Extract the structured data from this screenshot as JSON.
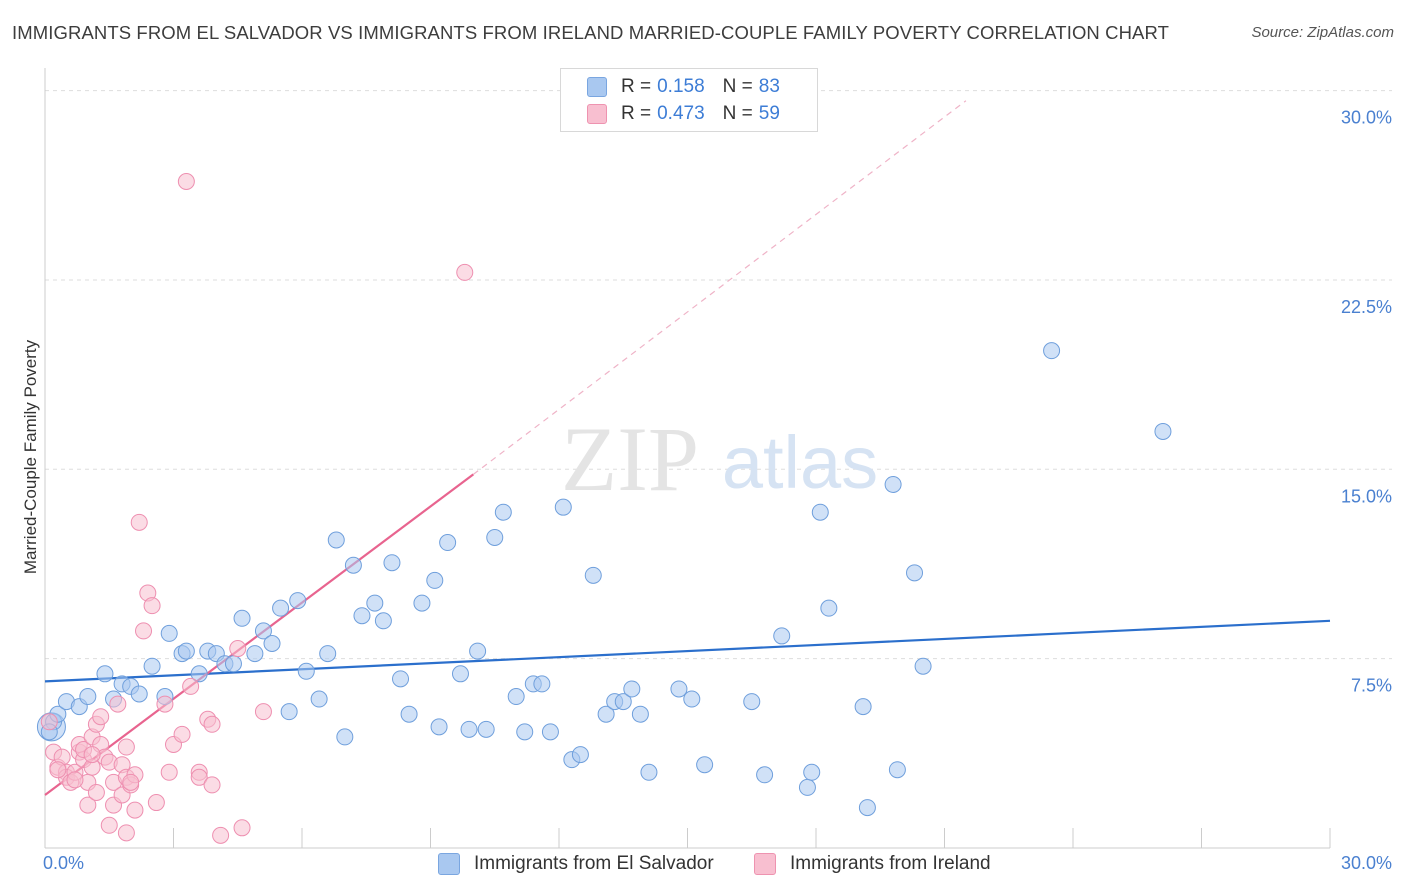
{
  "title": "IMMIGRANTS FROM EL SALVADOR VS IMMIGRANTS FROM IRELAND MARRIED-COUPLE FAMILY POVERTY CORRELATION CHART",
  "source": "Source: ZipAtlas.com",
  "watermark": {
    "zip": "ZIP",
    "atlas": "atlas"
  },
  "legend": {
    "r_label": "R =",
    "n_label": "N =",
    "rows": [
      {
        "name": "Immigrants from El Salvador",
        "r": "0.158",
        "n": "83",
        "color": "#a9c8f0",
        "stroke": "#7aa6e0"
      },
      {
        "name": "Immigrants from Ireland",
        "r": "0.473",
        "n": "59",
        "color": "#f8bfd0",
        "stroke": "#ee93b0"
      }
    ]
  },
  "chart_data": {
    "type": "scatter",
    "title": "IMMIGRANTS FROM EL SALVADOR VS IMMIGRANTS FROM IRELAND MARRIED-COUPLE FAMILY POVERTY CORRELATION CHART",
    "xlabel": "",
    "ylabel": "Married-Couple Family Poverty",
    "xlim": [
      0,
      30
    ],
    "ylim": [
      0,
      30.5
    ],
    "x_tick_labels": [
      {
        "value": 0,
        "label": "0.0%"
      },
      {
        "value": 30,
        "label": "30.0%"
      }
    ],
    "y_tick_labels": [
      {
        "value": 7.5,
        "label": "7.5%"
      },
      {
        "value": 15.0,
        "label": "15.0%"
      },
      {
        "value": 22.5,
        "label": "22.5%"
      },
      {
        "value": 30.0,
        "label": "30.0%"
      }
    ],
    "x_minor_ticks": [
      0,
      3,
      6,
      9,
      12,
      15,
      18,
      21,
      24,
      27,
      30
    ],
    "grid": true,
    "series": [
      {
        "name": "Immigrants from El Salvador",
        "color": "#a9c8f0",
        "stroke": "#6f9fdc",
        "trend": {
          "x0": 0,
          "y0": 6.6,
          "x1": 30,
          "y1": 9.0,
          "color": "#2b6fcc"
        },
        "points": [
          [
            0.2,
            5.0
          ],
          [
            0.3,
            5.3
          ],
          [
            0.5,
            5.8
          ],
          [
            0.8,
            5.6
          ],
          [
            1.0,
            6.0
          ],
          [
            1.4,
            6.9
          ],
          [
            1.6,
            5.9
          ],
          [
            1.8,
            6.5
          ],
          [
            2.0,
            6.4
          ],
          [
            2.2,
            6.1
          ],
          [
            2.5,
            7.2
          ],
          [
            2.8,
            6.0
          ],
          [
            2.9,
            8.5
          ],
          [
            3.2,
            7.7
          ],
          [
            3.3,
            7.8
          ],
          [
            3.6,
            6.9
          ],
          [
            3.8,
            7.8
          ],
          [
            4.0,
            7.7
          ],
          [
            4.2,
            7.3
          ],
          [
            4.4,
            7.3
          ],
          [
            4.6,
            9.1
          ],
          [
            4.9,
            7.7
          ],
          [
            5.1,
            8.6
          ],
          [
            5.3,
            8.1
          ],
          [
            5.5,
            9.5
          ],
          [
            5.7,
            5.4
          ],
          [
            5.9,
            9.8
          ],
          [
            6.1,
            7.0
          ],
          [
            6.4,
            5.9
          ],
          [
            6.6,
            7.7
          ],
          [
            6.8,
            12.2
          ],
          [
            7.0,
            4.4
          ],
          [
            7.2,
            11.2
          ],
          [
            7.4,
            9.2
          ],
          [
            7.7,
            9.7
          ],
          [
            7.9,
            9.0
          ],
          [
            8.1,
            11.3
          ],
          [
            8.3,
            6.7
          ],
          [
            8.5,
            5.3
          ],
          [
            8.8,
            9.7
          ],
          [
            9.1,
            10.6
          ],
          [
            9.2,
            4.8
          ],
          [
            9.4,
            12.1
          ],
          [
            9.7,
            6.9
          ],
          [
            9.9,
            4.7
          ],
          [
            10.1,
            7.8
          ],
          [
            10.3,
            4.7
          ],
          [
            10.5,
            12.3
          ],
          [
            10.7,
            13.3
          ],
          [
            11.0,
            6.0
          ],
          [
            11.2,
            4.6
          ],
          [
            11.4,
            6.5
          ],
          [
            11.6,
            6.5
          ],
          [
            11.8,
            4.6
          ],
          [
            12.1,
            13.5
          ],
          [
            12.3,
            3.5
          ],
          [
            12.5,
            3.7
          ],
          [
            12.8,
            10.8
          ],
          [
            13.1,
            5.3
          ],
          [
            13.3,
            5.8
          ],
          [
            13.5,
            5.8
          ],
          [
            13.7,
            6.3
          ],
          [
            13.9,
            5.3
          ],
          [
            14.1,
            3.0
          ],
          [
            14.8,
            6.3
          ],
          [
            15.1,
            5.9
          ],
          [
            15.4,
            3.3
          ],
          [
            16.5,
            5.8
          ],
          [
            16.8,
            2.9
          ],
          [
            17.2,
            8.4
          ],
          [
            17.8,
            2.4
          ],
          [
            17.9,
            3.0
          ],
          [
            18.1,
            13.3
          ],
          [
            18.3,
            9.5
          ],
          [
            19.1,
            5.6
          ],
          [
            19.2,
            1.6
          ],
          [
            19.8,
            14.4
          ],
          [
            19.9,
            3.1
          ],
          [
            20.3,
            10.9
          ],
          [
            20.5,
            7.2
          ],
          [
            23.5,
            19.7
          ],
          [
            26.1,
            16.5
          ],
          [
            0.1,
            4.6
          ]
        ]
      },
      {
        "name": "Immigrants from Ireland",
        "color": "#f8bfd0",
        "stroke": "#ee8fb0",
        "trend": {
          "x0": 0,
          "y0": 2.1,
          "x1": 10.0,
          "y1": 14.8,
          "color": "#e8648f"
        },
        "trend_ext": {
          "x1": 21.5,
          "y1": 29.6
        },
        "points": [
          [
            0.1,
            5.0
          ],
          [
            0.2,
            3.8
          ],
          [
            0.3,
            3.2
          ],
          [
            0.4,
            3.6
          ],
          [
            0.5,
            3.0
          ],
          [
            0.5,
            2.8
          ],
          [
            0.6,
            2.6
          ],
          [
            0.7,
            3.0
          ],
          [
            0.8,
            3.8
          ],
          [
            0.8,
            4.1
          ],
          [
            0.9,
            3.5
          ],
          [
            0.9,
            3.9
          ],
          [
            1.0,
            2.6
          ],
          [
            1.0,
            1.7
          ],
          [
            1.1,
            4.4
          ],
          [
            1.1,
            3.2
          ],
          [
            1.2,
            4.9
          ],
          [
            1.2,
            2.2
          ],
          [
            1.3,
            5.2
          ],
          [
            1.3,
            4.1
          ],
          [
            1.4,
            3.6
          ],
          [
            1.5,
            3.4
          ],
          [
            1.5,
            0.9
          ],
          [
            1.6,
            2.6
          ],
          [
            1.6,
            1.7
          ],
          [
            1.7,
            5.7
          ],
          [
            1.8,
            3.3
          ],
          [
            1.8,
            2.1
          ],
          [
            1.9,
            2.8
          ],
          [
            1.9,
            0.6
          ],
          [
            2.0,
            2.5
          ],
          [
            2.1,
            2.9
          ],
          [
            2.1,
            1.5
          ],
          [
            2.2,
            12.9
          ],
          [
            2.3,
            8.6
          ],
          [
            2.4,
            10.1
          ],
          [
            2.5,
            9.6
          ],
          [
            2.6,
            1.8
          ],
          [
            2.8,
            5.7
          ],
          [
            2.9,
            3.0
          ],
          [
            3.0,
            4.1
          ],
          [
            3.2,
            4.5
          ],
          [
            3.3,
            26.4
          ],
          [
            3.4,
            6.4
          ],
          [
            3.6,
            3.0
          ],
          [
            3.6,
            2.8
          ],
          [
            3.8,
            5.1
          ],
          [
            3.9,
            4.9
          ],
          [
            3.9,
            2.5
          ],
          [
            4.1,
            0.5
          ],
          [
            4.5,
            7.9
          ],
          [
            4.6,
            0.8
          ],
          [
            5.1,
            5.4
          ],
          [
            9.8,
            22.8
          ],
          [
            1.1,
            3.7
          ],
          [
            0.7,
            2.7
          ],
          [
            1.9,
            4.0
          ],
          [
            0.3,
            3.1
          ],
          [
            2.0,
            2.6
          ]
        ]
      }
    ]
  }
}
